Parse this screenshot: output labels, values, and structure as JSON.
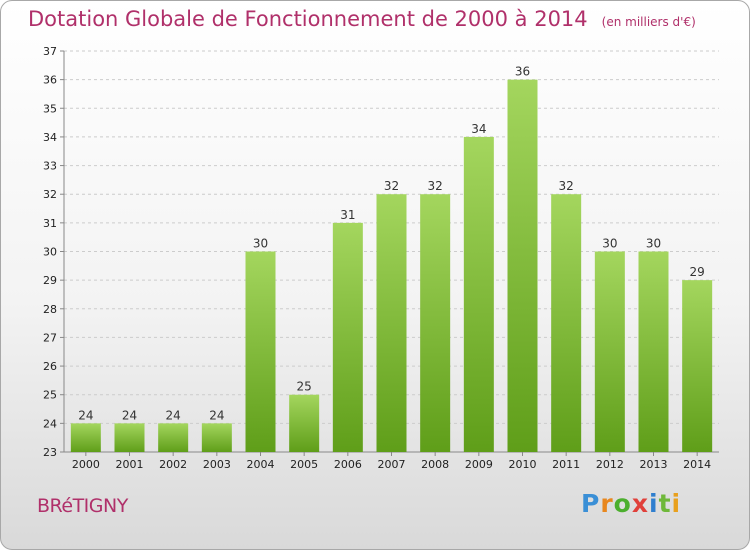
{
  "title": "Dotation Globale de Fonctionnement de 2000 à 2014",
  "subtitle": "(en milliers d'€)",
  "place_name": "BRéTIGNY",
  "logo": {
    "letters": [
      "P",
      "r",
      "o",
      "x",
      "i",
      "t",
      "i"
    ],
    "colors": [
      "#3a8fd6",
      "#e8871e",
      "#4caf2e",
      "#e0403a",
      "#2f7fcf",
      "#6fb83a",
      "#e8a01e"
    ]
  },
  "colors": {
    "title": "#b0306a",
    "bar_top": "#a4d65e",
    "bar_bottom": "#5f9e19",
    "grid": "#cccccc"
  },
  "chart_data": {
    "type": "bar",
    "categories": [
      "2000",
      "2001",
      "2002",
      "2003",
      "2004",
      "2005",
      "2006",
      "2007",
      "2008",
      "2009",
      "2010",
      "2011",
      "2012",
      "2013",
      "2014"
    ],
    "values": [
      24,
      24,
      24,
      24,
      30,
      25,
      31,
      32,
      32,
      34,
      36,
      32,
      30,
      30,
      29
    ],
    "ylim": [
      23,
      37
    ],
    "yticks": [
      23,
      24,
      25,
      26,
      27,
      28,
      29,
      30,
      31,
      32,
      33,
      34,
      35,
      36,
      37
    ],
    "grid": true,
    "xlabel": "",
    "ylabel": ""
  }
}
